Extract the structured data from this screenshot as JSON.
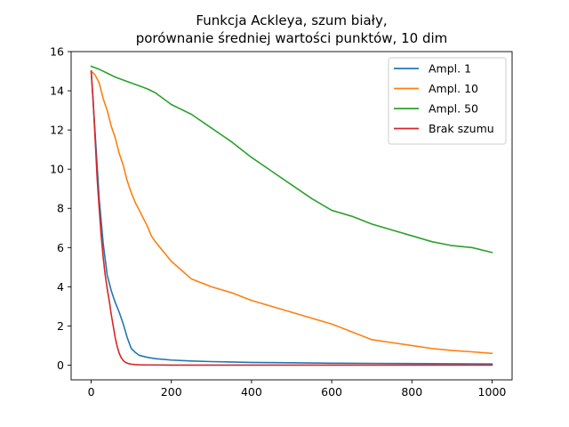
{
  "chart_data": {
    "type": "line",
    "title_lines": [
      "Funkcja Ackleya, szum biały,",
      "porównanie średniej wartości punktów, 10 dim"
    ],
    "xlabel": "",
    "ylabel": "",
    "xlim": [
      -50,
      1050
    ],
    "ylim": [
      -0.75,
      16
    ],
    "xticks": [
      0,
      200,
      400,
      600,
      800,
      1000
    ],
    "yticks": [
      0,
      2,
      4,
      6,
      8,
      10,
      12,
      14,
      16
    ],
    "grid": false,
    "legend_position": "top-right",
    "series": [
      {
        "name": "Ampl. 1",
        "color": "#1f77b4",
        "x": [
          0,
          10,
          20,
          30,
          40,
          50,
          60,
          70,
          80,
          90,
          100,
          110,
          120,
          140,
          160,
          200,
          250,
          300,
          400,
          500,
          600,
          700,
          800,
          900,
          1000
        ],
        "y": [
          15.0,
          11.8,
          8.5,
          6.2,
          4.6,
          3.8,
          3.2,
          2.7,
          2.1,
          1.4,
          0.85,
          0.65,
          0.5,
          0.4,
          0.33,
          0.26,
          0.21,
          0.18,
          0.14,
          0.12,
          0.1,
          0.09,
          0.08,
          0.07,
          0.06
        ]
      },
      {
        "name": "Ampl. 10",
        "color": "#ff7f0e",
        "x": [
          0,
          10,
          20,
          30,
          40,
          50,
          60,
          70,
          80,
          90,
          100,
          110,
          120,
          130,
          140,
          150,
          160,
          180,
          200,
          250,
          300,
          350,
          400,
          450,
          500,
          550,
          600,
          650,
          700,
          750,
          800,
          850,
          900,
          950,
          1000
        ],
        "y": [
          15.0,
          14.8,
          14.4,
          13.6,
          13.0,
          12.2,
          11.6,
          10.8,
          10.2,
          9.4,
          8.8,
          8.3,
          7.9,
          7.5,
          7.1,
          6.6,
          6.3,
          5.8,
          5.3,
          4.4,
          4.0,
          3.7,
          3.3,
          3.0,
          2.7,
          2.4,
          2.1,
          1.7,
          1.3,
          1.15,
          1.0,
          0.85,
          0.75,
          0.68,
          0.6
        ]
      },
      {
        "name": "Ampl. 50",
        "color": "#2ca02c",
        "x": [
          0,
          20,
          40,
          60,
          80,
          100,
          120,
          140,
          160,
          180,
          200,
          250,
          300,
          350,
          400,
          450,
          500,
          550,
          600,
          650,
          700,
          750,
          800,
          850,
          900,
          950,
          1000
        ],
        "y": [
          15.25,
          15.1,
          14.9,
          14.7,
          14.55,
          14.4,
          14.25,
          14.1,
          13.9,
          13.6,
          13.3,
          12.8,
          12.1,
          11.4,
          10.6,
          9.9,
          9.2,
          8.5,
          7.9,
          7.6,
          7.2,
          6.9,
          6.6,
          6.3,
          6.1,
          6.0,
          5.75
        ]
      },
      {
        "name": "Brak szumu",
        "color": "#d62728",
        "x": [
          0,
          5,
          10,
          15,
          20,
          25,
          30,
          35,
          40,
          45,
          50,
          55,
          60,
          65,
          70,
          75,
          80,
          85,
          90,
          95,
          100,
          110,
          120,
          140,
          160,
          200,
          300,
          400,
          500,
          600,
          700,
          800,
          900,
          1000
        ],
        "y": [
          15.0,
          13.5,
          11.5,
          9.5,
          8.0,
          6.6,
          5.5,
          4.6,
          3.9,
          3.3,
          2.6,
          2.0,
          1.4,
          0.95,
          0.6,
          0.38,
          0.24,
          0.15,
          0.1,
          0.07,
          0.05,
          0.03,
          0.02,
          0.01,
          0.01,
          0.0,
          0.0,
          0.0,
          0.0,
          0.0,
          0.0,
          0.0,
          0.0,
          0.0
        ]
      }
    ]
  }
}
